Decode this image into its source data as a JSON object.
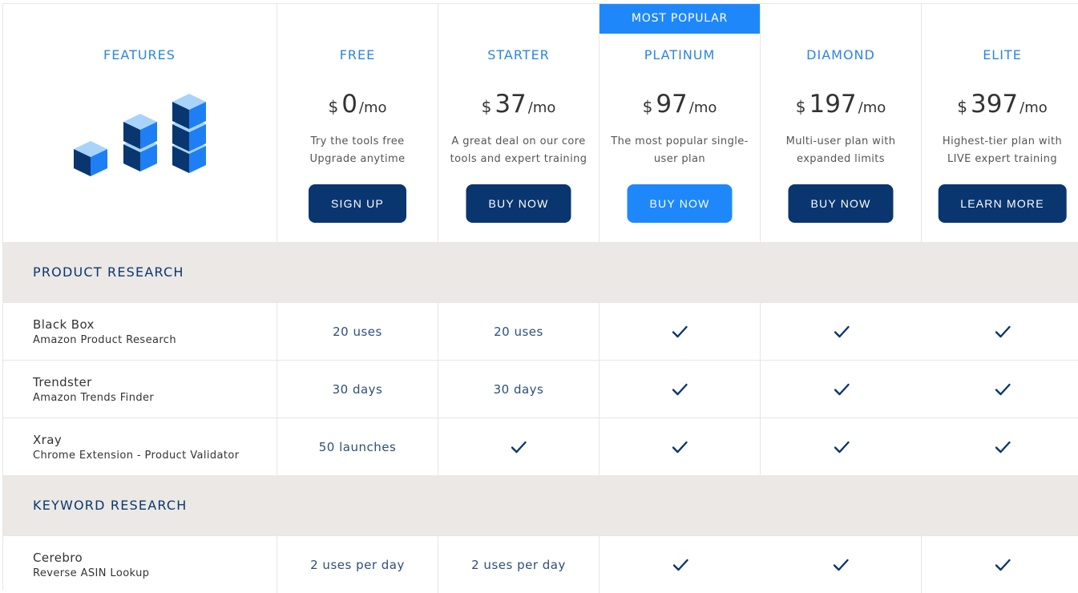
{
  "features_header": "FEATURES",
  "badge": "MOST POPULAR",
  "plans": [
    {
      "name": "FREE",
      "currency": "$",
      "amount": "0",
      "period": "/mo",
      "desc1": "Try the tools free",
      "desc2": "Upgrade anytime",
      "button": "SIGN UP"
    },
    {
      "name": "STARTER",
      "currency": "$",
      "amount": "37",
      "period": "/mo",
      "desc1": "A great deal on our core",
      "desc2": "tools and expert training",
      "button": "BUY NOW"
    },
    {
      "name": "PLATINUM",
      "currency": "$",
      "amount": "97",
      "period": "/mo",
      "desc1": "The most popular single-",
      "desc2": "user plan",
      "button": "BUY NOW"
    },
    {
      "name": "DIAMOND",
      "currency": "$",
      "amount": "197",
      "period": "/mo",
      "desc1": "Multi-user plan with",
      "desc2": "expanded limits",
      "button": "BUY NOW"
    },
    {
      "name": "ELITE",
      "currency": "$",
      "amount": "397",
      "period": "/mo",
      "desc1": "Highest-tier plan with",
      "desc2": "LIVE expert training",
      "button": "LEARN MORE"
    }
  ],
  "sections": [
    {
      "title": "PRODUCT RESEARCH",
      "rows": [
        {
          "name": "Black Box",
          "sub": "Amazon Product Research",
          "values": [
            "20 uses",
            "20 uses",
            "check",
            "check",
            "check"
          ]
        },
        {
          "name": "Trendster",
          "sub": "Amazon Trends Finder",
          "values": [
            "30 days",
            "30 days",
            "check",
            "check",
            "check"
          ]
        },
        {
          "name": "Xray",
          "sub": "Chrome Extension - Product Validator",
          "values": [
            "50 launches",
            "check",
            "check",
            "check",
            "check"
          ]
        }
      ]
    },
    {
      "title": "KEYWORD RESEARCH",
      "rows": [
        {
          "name": "Cerebro",
          "sub": "Reverse ASIN Lookup",
          "values": [
            "2 uses per day",
            "2 uses per day",
            "check",
            "check",
            "check"
          ]
        }
      ]
    }
  ],
  "colors": {
    "accent": "#1e88fb",
    "dark": "#0a3670",
    "section_bg": "#ebe8e5",
    "plan_title": "#2a86e0"
  }
}
